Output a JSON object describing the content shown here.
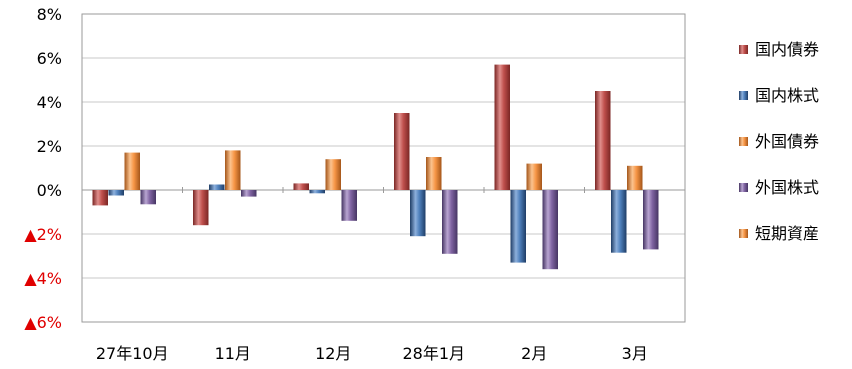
{
  "chart_data": {
    "type": "bar",
    "categories": [
      "27年10月",
      "11月",
      "12月",
      "28年1月",
      "2月",
      "3月"
    ],
    "ylim": [
      -6,
      8
    ],
    "y_ticks": [
      {
        "value": 8,
        "label": "8%",
        "negative": false
      },
      {
        "value": 6,
        "label": "6%",
        "negative": false
      },
      {
        "value": 4,
        "label": "4%",
        "negative": false
      },
      {
        "value": 2,
        "label": "2%",
        "negative": false
      },
      {
        "value": 0,
        "label": "0%",
        "negative": false
      },
      {
        "value": -2,
        "label": "▲2%",
        "negative": true
      },
      {
        "value": -4,
        "label": "▲4%",
        "negative": true
      },
      {
        "value": -6,
        "label": "▲6%",
        "negative": true
      }
    ],
    "grid": true,
    "legend_position": "right",
    "series": [
      {
        "name": "国内債券",
        "color": "#c0504d",
        "dark": "#7a2624",
        "light": "#e08e8c",
        "values": [
          -0.7,
          -1.6,
          0.3,
          3.5,
          5.7,
          4.5
        ]
      },
      {
        "name": "国内株式",
        "color": "#4f81bd",
        "dark": "#1f3d66",
        "light": "#8db0dc",
        "values": [
          -0.25,
          0.25,
          -0.15,
          -2.1,
          -3.3,
          -2.85
        ]
      },
      {
        "name": "外国債券",
        "color": "#f79646",
        "dark": "#a4561a",
        "light": "#fbc38f",
        "values": [
          1.7,
          1.8,
          1.4,
          1.5,
          1.2,
          1.1
        ]
      },
      {
        "name": "外国株式",
        "color": "#8064a2",
        "dark": "#463563",
        "light": "#b9a5d2",
        "values": [
          -0.65,
          -0.3,
          -1.4,
          -2.9,
          -3.6,
          -2.7
        ]
      },
      {
        "name": "短期資産",
        "color": "#f79646",
        "dark": "#a4561a",
        "light": "#fbc38f",
        "values": [
          0,
          0,
          0,
          0,
          0,
          0
        ]
      }
    ],
    "colors": {
      "negative_tick": "#e00000",
      "tick": "#000000",
      "grid": "#c8c8c8",
      "axis": "#9a9a9a"
    }
  }
}
